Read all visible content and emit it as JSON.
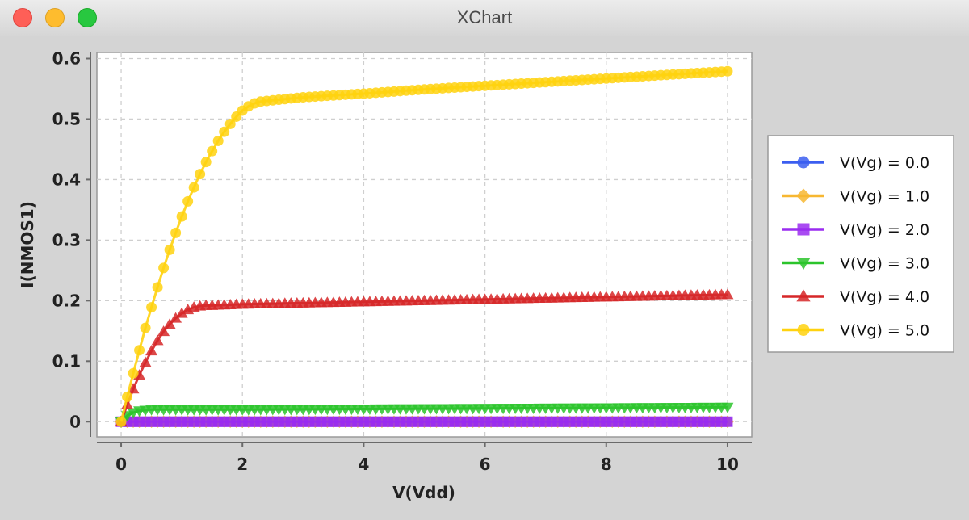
{
  "window": {
    "title": "XChart"
  },
  "chart_data": {
    "type": "line",
    "title": "",
    "xlabel": "V(Vdd)",
    "ylabel": "I(NMOS1)",
    "xlim": [
      -0.4,
      10.4
    ],
    "ylim": [
      -0.025,
      0.61
    ],
    "xticks": [
      0,
      2,
      4,
      6,
      8,
      10
    ],
    "xtick_labels": [
      "0",
      "2",
      "4",
      "6",
      "8",
      "10"
    ],
    "yticks": [
      0,
      0.1,
      0.2,
      0.3,
      0.4,
      0.5,
      0.6
    ],
    "ytick_labels": [
      "0",
      "0.1",
      "0.2",
      "0.3",
      "0.4",
      "0.5",
      "0.6"
    ],
    "grid": true,
    "legend_position": "outside-right",
    "x_range": {
      "start": 0,
      "end": 10,
      "points": 101
    },
    "series": [
      {
        "name": "V(Vg) = 0.0",
        "color": "#3b5ef0",
        "marker": "circle",
        "x": [
          0,
          10
        ],
        "y": [
          0,
          0
        ]
      },
      {
        "name": "V(Vg) = 1.0",
        "color": "#f7b731",
        "marker": "diamond",
        "x": [
          0,
          10
        ],
        "y": [
          0,
          0
        ]
      },
      {
        "name": "V(Vg) = 2.0",
        "color": "#9a2cf0",
        "marker": "square",
        "x": [
          0,
          10
        ],
        "y": [
          0,
          0
        ]
      },
      {
        "name": "V(Vg) = 3.0",
        "color": "#2bc42b",
        "marker": "triangle-down",
        "x": [
          0,
          0.1,
          0.2,
          0.3,
          0.4,
          0.5,
          1,
          2,
          4,
          6,
          8,
          10
        ],
        "y": [
          0,
          0.01,
          0.015,
          0.018,
          0.019,
          0.02,
          0.02,
          0.02,
          0.021,
          0.022,
          0.023,
          0.024
        ]
      },
      {
        "name": "V(Vg) = 4.0",
        "color": "#d62728",
        "marker": "triangle-up",
        "x": [
          0,
          0.1,
          0.2,
          0.3,
          0.4,
          0.5,
          0.6,
          0.7,
          0.8,
          0.9,
          1.0,
          1.1,
          1.2,
          1.3,
          1.4,
          1.5,
          2,
          4,
          6,
          8,
          10
        ],
        "y": [
          0,
          0.028,
          0.054,
          0.077,
          0.098,
          0.117,
          0.134,
          0.149,
          0.161,
          0.171,
          0.179,
          0.185,
          0.189,
          0.191,
          0.192,
          0.192,
          0.194,
          0.198,
          0.202,
          0.206,
          0.21
        ]
      },
      {
        "name": "V(Vg) = 5.0",
        "color": "#ffd20f",
        "marker": "circle",
        "x": [
          0,
          0.1,
          0.2,
          0.3,
          0.4,
          0.5,
          0.6,
          0.7,
          0.8,
          0.9,
          1.0,
          1.1,
          1.2,
          1.3,
          1.4,
          1.5,
          1.6,
          1.7,
          1.8,
          1.9,
          2.0,
          2.1,
          2.2,
          2.3,
          2.4,
          2.5,
          3,
          4,
          5,
          6,
          7,
          8,
          9,
          10
        ],
        "y": [
          0,
          0.041,
          0.08,
          0.118,
          0.155,
          0.189,
          0.222,
          0.254,
          0.284,
          0.312,
          0.339,
          0.364,
          0.387,
          0.409,
          0.429,
          0.447,
          0.464,
          0.479,
          0.492,
          0.504,
          0.514,
          0.521,
          0.526,
          0.529,
          0.53,
          0.531,
          0.536,
          0.542,
          0.549,
          0.555,
          0.561,
          0.567,
          0.573,
          0.579
        ]
      }
    ]
  }
}
